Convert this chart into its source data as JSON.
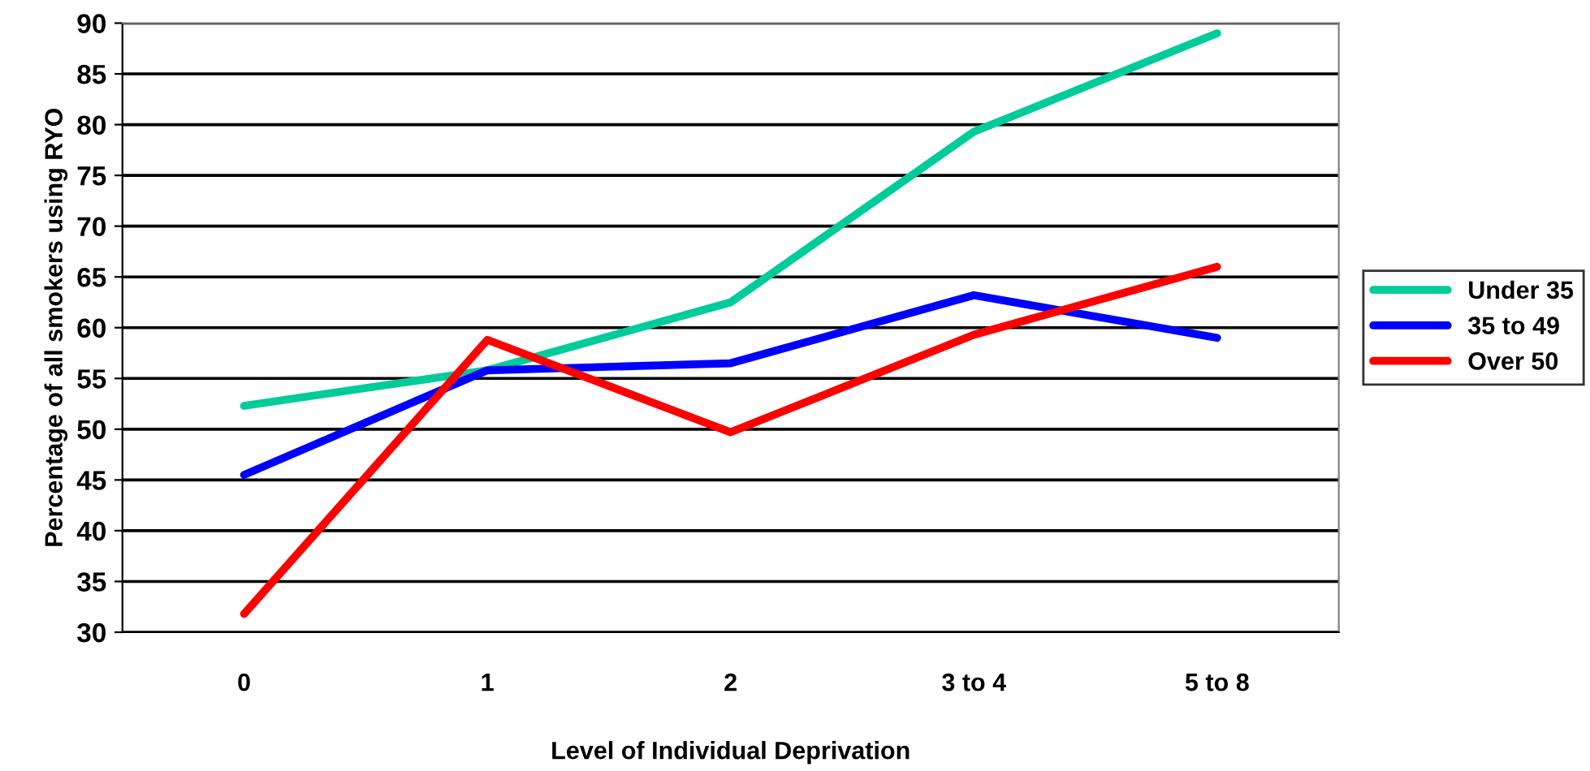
{
  "chart_data": {
    "type": "line",
    "xlabel": "Level of Individual Deprivation",
    "ylabel": "Percentage of all smokers using RYO",
    "categories": [
      "0",
      "1",
      "2",
      "3 to 4",
      "5 to 8"
    ],
    "series": [
      {
        "name": "Under 35",
        "color": "#00cc99",
        "values": [
          52.3,
          55.8,
          62.5,
          79.3,
          89
        ]
      },
      {
        "name": "35 to 49",
        "color": "#0000ff",
        "values": [
          45.5,
          55.8,
          56.5,
          63.2,
          59
        ]
      },
      {
        "name": "Over 50",
        "color": "#ff0000",
        "values": [
          31.8,
          58.8,
          49.7,
          59.3,
          66
        ]
      }
    ],
    "ylim": [
      30,
      90
    ],
    "yticks": [
      30,
      35,
      40,
      45,
      50,
      55,
      60,
      65,
      70,
      75,
      80,
      85,
      90
    ],
    "grid": "y",
    "legend": "right",
    "marker": "none",
    "line_style": "solid"
  }
}
